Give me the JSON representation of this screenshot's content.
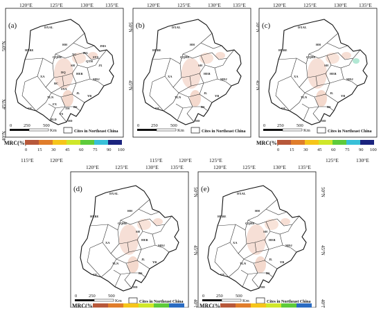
{
  "panels": [
    {
      "id": "a",
      "label": "(a)"
    },
    {
      "id": "b",
      "label": "(b)"
    },
    {
      "id": "c",
      "label": "(c)"
    },
    {
      "id": "d",
      "label": "(d)"
    },
    {
      "id": "e",
      "label": "(e)"
    }
  ],
  "axis_labels": {
    "top_lon": [
      "120°E",
      "125°E",
      "130°E",
      "135°E"
    ],
    "bottom_lon": [
      "115°E",
      "120°E",
      "125°E",
      "130°E"
    ],
    "right_lat": [
      "50°N",
      "45°N",
      "40°N"
    ],
    "left_lat": [
      "50°N",
      "45°N",
      "40°N"
    ]
  },
  "legend": {
    "title": "MRC(%)",
    "ticks": [
      "0",
      "15",
      "30",
      "45",
      "60",
      "75",
      "90",
      "100"
    ],
    "colors": [
      "#b7583a",
      "#e07d2b",
      "#f6c51a",
      "#cfe72a",
      "#5ecb3a",
      "#38c0d8",
      "#2b6cc2",
      "#1a237e"
    ]
  },
  "scale_bar": {
    "ticks": [
      "0",
      "250",
      "500"
    ],
    "unit": "Km"
  },
  "inset_label": "Cites in Northeast China",
  "cities": [
    "DXAL",
    "HLBE",
    "HH",
    "QQHE",
    "YC",
    "HG",
    "JMS",
    "SYS",
    "SH",
    "QTH",
    "JX",
    "DQ",
    "HEB",
    "MDJ",
    "SY",
    "BC",
    "JL",
    "YB",
    "CC",
    "LY",
    "TLN",
    "CF",
    "FX",
    "BS",
    "TH",
    "FS",
    "LYG",
    "AS",
    "HLD",
    "JZ",
    "PJ",
    "YK",
    "DD",
    "DL",
    "SYA",
    "XA"
  ]
}
